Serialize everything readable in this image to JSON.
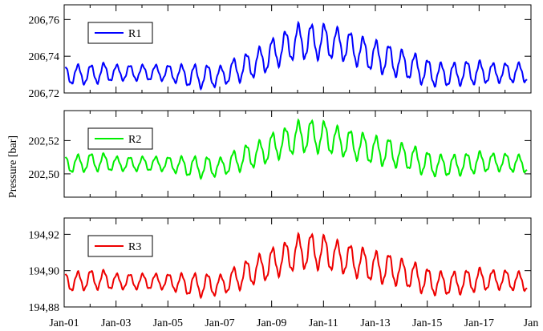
{
  "chart_data": {
    "type": "line",
    "ylabel": "Pressure [bar]",
    "x_ticks": [
      "Jan-01",
      "Jan-03",
      "Jan-05",
      "Jan-07",
      "Jan-09",
      "Jan-11",
      "Jan-13",
      "Jan-15",
      "Jan-17",
      "Jan"
    ],
    "x_range": [
      2001,
      2019
    ],
    "grid": false,
    "legend_placement": "top-left",
    "panels": [
      {
        "series": [
          {
            "name": "R1",
            "color": "#0000ff"
          }
        ],
        "y_ticks": [
          "206,72",
          "206,74",
          "206,76"
        ],
        "y_tick_values": [
          206.72,
          206.74,
          206.76
        ],
        "ylim": [
          206.72,
          206.768
        ],
        "x": [
          2001.0,
          2001.5,
          2002.0,
          2002.5,
          2003.0,
          2003.5,
          2004.0,
          2004.5,
          2005.0,
          2005.5,
          2006.0,
          2006.5,
          2007.0,
          2007.5,
          2008.0,
          2008.5,
          2009.0,
          2009.5,
          2010.0,
          2010.5,
          2011.0,
          2011.5,
          2012.0,
          2012.5,
          2013.0,
          2013.5,
          2014.0,
          2014.5,
          2015.0,
          2015.5,
          2016.0,
          2016.5,
          2017.0,
          2017.5,
          2018.0,
          2018.5
        ],
        "y": [
          206.73,
          206.73,
          206.73,
          206.731,
          206.731,
          206.731,
          206.731,
          206.731,
          206.731,
          206.73,
          206.729,
          206.729,
          206.729,
          206.732,
          206.734,
          206.737,
          206.741,
          206.745,
          206.748,
          206.748,
          206.748,
          206.747,
          206.745,
          206.742,
          206.74,
          206.738,
          206.736,
          206.734,
          206.731,
          206.73,
          206.73,
          206.731,
          206.731,
          206.731,
          206.731,
          206.731
        ],
        "amplitude": [
          0.005,
          0.005,
          0.005,
          0.005,
          0.004,
          0.004,
          0.004,
          0.004,
          0.004,
          0.005,
          0.006,
          0.006,
          0.005,
          0.006,
          0.007,
          0.007,
          0.008,
          0.008,
          0.009,
          0.009,
          0.009,
          0.008,
          0.008,
          0.008,
          0.008,
          0.008,
          0.007,
          0.007,
          0.007,
          0.006,
          0.006,
          0.006,
          0.006,
          0.005,
          0.005,
          0.005
        ],
        "cycles_per_year": 2.0
      },
      {
        "series": [
          {
            "name": "R2",
            "color": "#00ee00"
          }
        ],
        "y_ticks": [
          "202,50",
          "202,52"
        ],
        "y_tick_values": [
          202.5,
          202.52
        ],
        "ylim": [
          202.486,
          202.538
        ],
        "x": [
          2001.0,
          2001.5,
          2002.0,
          2002.5,
          2003.0,
          2003.5,
          2004.0,
          2004.5,
          2005.0,
          2005.5,
          2006.0,
          2006.5,
          2007.0,
          2007.5,
          2008.0,
          2008.5,
          2009.0,
          2009.5,
          2010.0,
          2010.5,
          2011.0,
          2011.5,
          2012.0,
          2012.5,
          2013.0,
          2013.5,
          2014.0,
          2014.5,
          2015.0,
          2015.5,
          2016.0,
          2016.5,
          2017.0,
          2017.5,
          2018.0,
          2018.5
        ],
        "y": [
          202.506,
          202.506,
          202.507,
          202.507,
          202.506,
          202.506,
          202.506,
          202.506,
          202.506,
          202.505,
          202.504,
          202.504,
          202.504,
          202.507,
          202.51,
          202.512,
          202.516,
          202.519,
          202.522,
          202.523,
          202.522,
          202.52,
          202.518,
          202.516,
          202.514,
          202.513,
          202.511,
          202.509,
          202.506,
          202.505,
          202.505,
          202.506,
          202.507,
          202.507,
          202.507,
          202.506
        ],
        "amplitude": [
          0.005,
          0.005,
          0.005,
          0.005,
          0.004,
          0.004,
          0.004,
          0.004,
          0.004,
          0.005,
          0.006,
          0.006,
          0.005,
          0.006,
          0.007,
          0.007,
          0.008,
          0.008,
          0.009,
          0.009,
          0.009,
          0.008,
          0.008,
          0.008,
          0.008,
          0.008,
          0.007,
          0.007,
          0.007,
          0.006,
          0.006,
          0.006,
          0.006,
          0.005,
          0.005,
          0.005
        ],
        "cycles_per_year": 2.0
      },
      {
        "series": [
          {
            "name": "R3",
            "color": "#ee0000"
          }
        ],
        "y_ticks": [
          "194,88",
          "194,90",
          "194,92"
        ],
        "y_tick_values": [
          194.88,
          194.9,
          194.92
        ],
        "ylim": [
          194.88,
          194.929
        ],
        "x": [
          2001.0,
          2001.5,
          2002.0,
          2002.5,
          2003.0,
          2003.5,
          2004.0,
          2004.5,
          2005.0,
          2005.5,
          2006.0,
          2006.5,
          2007.0,
          2007.5,
          2008.0,
          2008.5,
          2009.0,
          2009.5,
          2010.0,
          2010.5,
          2011.0,
          2011.5,
          2012.0,
          2012.5,
          2013.0,
          2013.5,
          2014.0,
          2014.5,
          2015.0,
          2015.5,
          2016.0,
          2016.5,
          2017.0,
          2017.5,
          2018.0,
          2018.5
        ],
        "y": [
          194.894,
          194.894,
          194.895,
          194.895,
          194.894,
          194.894,
          194.894,
          194.894,
          194.894,
          194.893,
          194.892,
          194.892,
          194.892,
          194.895,
          194.898,
          194.901,
          194.904,
          194.907,
          194.91,
          194.911,
          194.91,
          194.908,
          194.906,
          194.904,
          194.902,
          194.901,
          194.899,
          194.897,
          194.894,
          194.893,
          194.893,
          194.894,
          194.895,
          194.895,
          194.895,
          194.894
        ],
        "amplitude": [
          0.005,
          0.005,
          0.005,
          0.005,
          0.004,
          0.004,
          0.004,
          0.004,
          0.004,
          0.005,
          0.006,
          0.006,
          0.005,
          0.006,
          0.007,
          0.007,
          0.008,
          0.008,
          0.009,
          0.009,
          0.009,
          0.008,
          0.008,
          0.008,
          0.008,
          0.008,
          0.007,
          0.007,
          0.007,
          0.006,
          0.006,
          0.006,
          0.006,
          0.005,
          0.005,
          0.005
        ],
        "cycles_per_year": 2.0
      }
    ]
  }
}
